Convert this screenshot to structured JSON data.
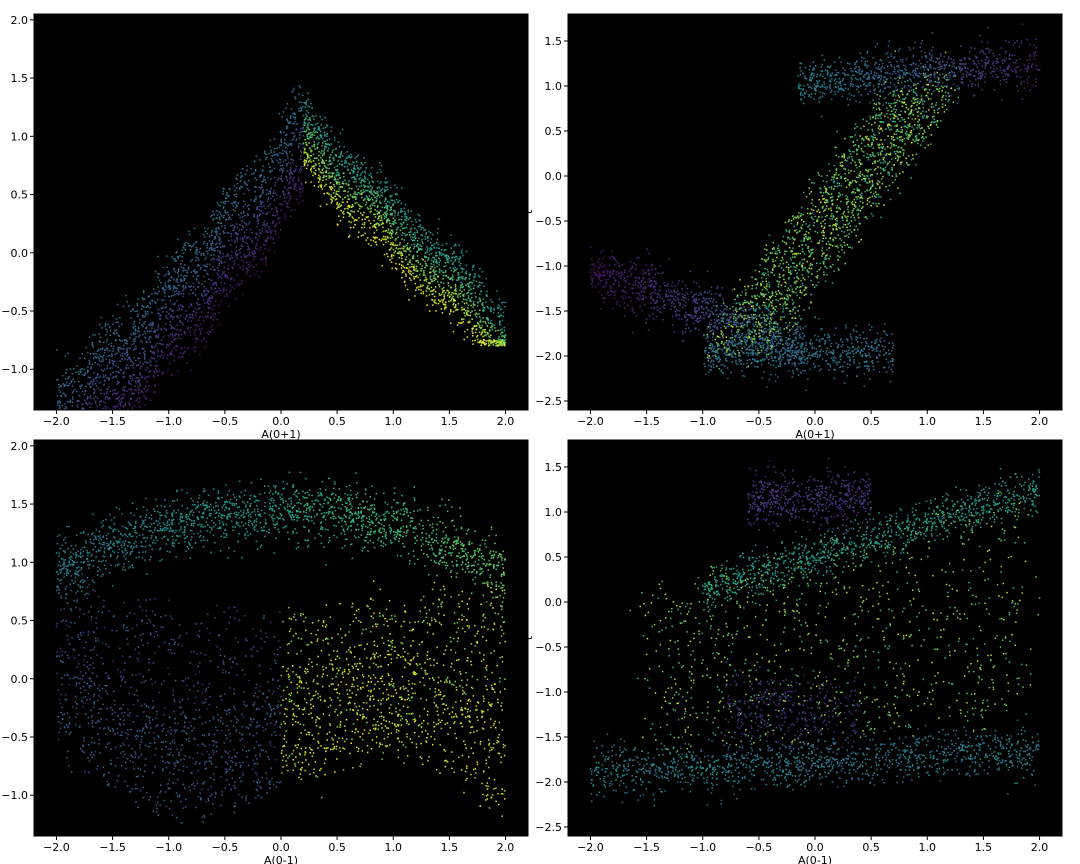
{
  "colormap": "viridis",
  "chart_data": [
    {
      "type": "scatter",
      "xlabel": "A(0+1)",
      "ylabel": "",
      "xlim": [
        -2.2,
        2.2
      ],
      "ylim": [
        -1.35,
        2.05
      ],
      "xticks": [
        -2.0,
        -1.5,
        -1.0,
        -0.5,
        0.0,
        0.5,
        1.0,
        1.5,
        2.0
      ],
      "yticks": [
        -1.0,
        -0.5,
        0.0,
        0.5,
        1.0,
        1.5,
        2.0
      ],
      "grid": false,
      "background": "#000000",
      "shape": "wave",
      "points": []
    },
    {
      "type": "scatter",
      "xlabel": "A(0+1)",
      "ylabel": "t",
      "xlim": [
        -2.2,
        2.2
      ],
      "ylim": [
        -2.6,
        1.8
      ],
      "xticks": [
        -2.0,
        -1.5,
        -1.0,
        -0.5,
        0.0,
        0.5,
        1.0,
        1.5,
        2.0
      ],
      "yticks": [
        -2.5,
        -2.0,
        -1.5,
        -1.0,
        -0.5,
        0.0,
        0.5,
        1.0,
        1.5
      ],
      "grid": false,
      "background": "#000000",
      "shape": "sshape",
      "points": []
    },
    {
      "type": "scatter",
      "xlabel": "A(0-1)",
      "ylabel": "",
      "xlim": [
        -2.2,
        2.2
      ],
      "ylim": [
        -1.35,
        2.05
      ],
      "xticks": [
        -2.0,
        -1.5,
        -1.0,
        -0.5,
        0.0,
        0.5,
        1.0,
        1.5,
        2.0
      ],
      "yticks": [
        -1.0,
        -0.5,
        0.0,
        0.5,
        1.0,
        1.5,
        2.0
      ],
      "grid": false,
      "background": "#000000",
      "shape": "arch",
      "points": []
    },
    {
      "type": "scatter",
      "xlabel": "A(0-1)",
      "ylabel": "t",
      "xlim": [
        -2.2,
        2.2
      ],
      "ylim": [
        -2.6,
        1.8
      ],
      "xticks": [
        -2.0,
        -1.5,
        -1.0,
        -0.5,
        0.0,
        0.5,
        1.0,
        1.5,
        2.0
      ],
      "yticks": [
        -2.5,
        -2.0,
        -1.5,
        -1.0,
        -0.5,
        0.0,
        0.5,
        1.0,
        1.5
      ],
      "grid": false,
      "background": "#000000",
      "shape": "band",
      "points": []
    }
  ]
}
